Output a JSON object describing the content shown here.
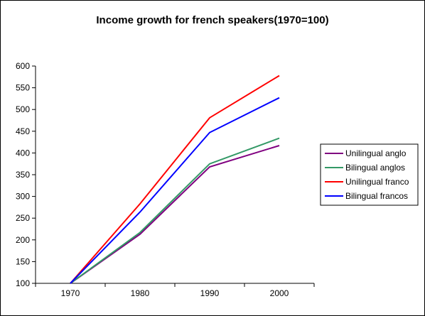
{
  "chart_data": {
    "type": "line",
    "title": "Income growth for french speakers(1970=100)",
    "xlabel": "",
    "ylabel": "",
    "categories": [
      "1970",
      "1980",
      "1990",
      "2000"
    ],
    "ylim": [
      100,
      600
    ],
    "yticks": [
      100,
      150,
      200,
      250,
      300,
      350,
      400,
      450,
      500,
      550,
      600
    ],
    "grid": false,
    "legend_position": "right",
    "series": [
      {
        "name": "Unilingual anglo",
        "color": "#800080",
        "values": [
          100,
          213,
          368,
          417
        ]
      },
      {
        "name": "Bilingual anglos",
        "color": "#339966",
        "values": [
          100,
          217,
          375,
          434
        ]
      },
      {
        "name": "Unilingual franco",
        "color": "#ff0000",
        "values": [
          100,
          283,
          481,
          578
        ]
      },
      {
        "name": "Bilingual francos",
        "color": "#0000ff",
        "values": [
          100,
          264,
          447,
          527
        ]
      }
    ]
  }
}
